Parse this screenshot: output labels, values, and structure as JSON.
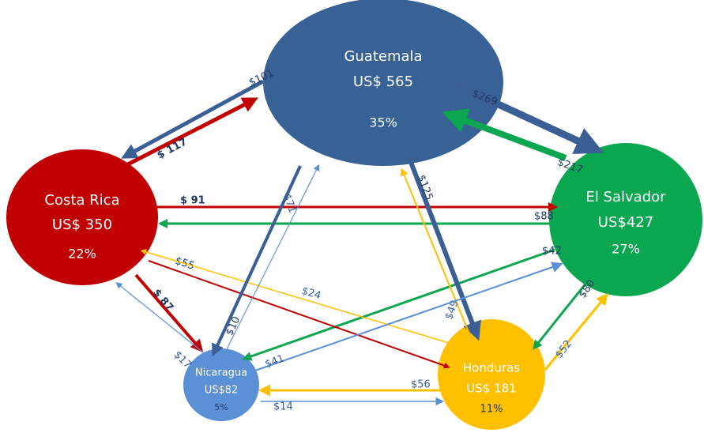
{
  "nodes": [
    {
      "name": "Guatemala",
      "value": "US$ 565",
      "share": "35%"
    },
    {
      "name": "Costa Rica",
      "value": "US$ 350",
      "share": "22%"
    },
    {
      "name": "El Salvador",
      "value": "US$427",
      "share": "27%"
    },
    {
      "name": "Nicaragua",
      "value": "US$82",
      "share": "5%"
    },
    {
      "name": "Honduras",
      "value": "US$ 181",
      "share": "11%"
    }
  ],
  "edges": [
    {
      "label": "$101"
    },
    {
      "label": "$ 117"
    },
    {
      "label": "$269"
    },
    {
      "label": "$217"
    },
    {
      "label": "$ 91"
    },
    {
      "label": "$88"
    },
    {
      "label": "$42"
    },
    {
      "label": "$55"
    },
    {
      "label": "$24"
    },
    {
      "label": "$ 87"
    },
    {
      "label": "$17"
    },
    {
      "label": "$10"
    },
    {
      "label": "$71"
    },
    {
      "label": "$125"
    },
    {
      "label": "$49"
    },
    {
      "label": "$80"
    },
    {
      "label": "$52"
    },
    {
      "label": "$41"
    },
    {
      "label": "$56"
    },
    {
      "label": "$14"
    }
  ]
}
